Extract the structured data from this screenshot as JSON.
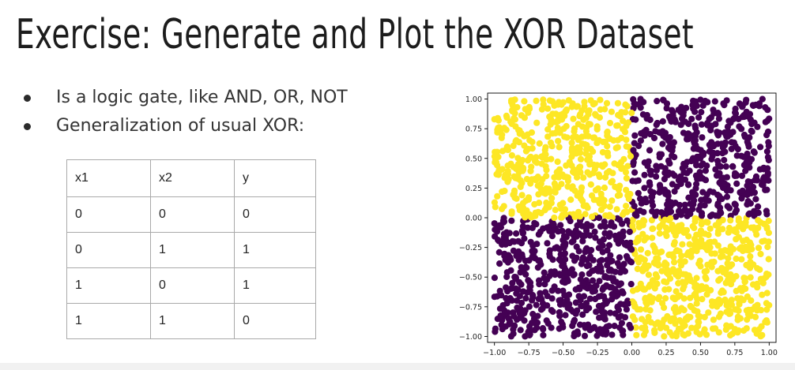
{
  "slide": {
    "title": "Exercise: Generate and Plot the XOR Dataset",
    "bullets": [
      "Is a logic gate, like AND, OR, NOT",
      "Generalization of usual XOR:"
    ]
  },
  "truth_table": {
    "headers": [
      "x1",
      "x2",
      "y"
    ],
    "rows": [
      [
        "0",
        "0",
        "0"
      ],
      [
        "0",
        "1",
        "1"
      ],
      [
        "1",
        "0",
        "1"
      ],
      [
        "1",
        "1",
        "0"
      ]
    ]
  },
  "chart_data": {
    "type": "scatter",
    "title": "",
    "xlabel": "",
    "ylabel": "",
    "xlim": [
      -1.05,
      1.05
    ],
    "ylim": [
      -1.05,
      1.05
    ],
    "grid": false,
    "legend": "none",
    "x_ticks": [
      "-1.00",
      "-0.75",
      "-0.50",
      "-0.25",
      "0.00",
      "0.25",
      "0.50",
      "0.75",
      "1.00"
    ],
    "y_ticks": [
      "-1.00",
      "-0.75",
      "-0.50",
      "-0.25",
      "0.00",
      "0.25",
      "0.50",
      "0.75",
      "1.00"
    ],
    "point_count": 2000,
    "points_distribution": "uniform over [-1, 1] x [-1, 1]",
    "class_colors": {
      "0": "#440154",
      "1": "#fde725"
    },
    "class_rule": "class 1 when x and y have opposite signs; class 0 when they share a sign",
    "regions": [
      {
        "quadrant": "top-left",
        "x": [
          -1,
          0
        ],
        "y": [
          0,
          1
        ],
        "class": 1
      },
      {
        "quadrant": "top-right",
        "x": [
          0,
          1
        ],
        "y": [
          0,
          1
        ],
        "class": 0
      },
      {
        "quadrant": "bottom-left",
        "x": [
          -1,
          0
        ],
        "y": [
          -1,
          0
        ],
        "class": 0
      },
      {
        "quadrant": "bottom-right",
        "x": [
          0,
          1
        ],
        "y": [
          -1,
          0
        ],
        "class": 1
      }
    ]
  }
}
